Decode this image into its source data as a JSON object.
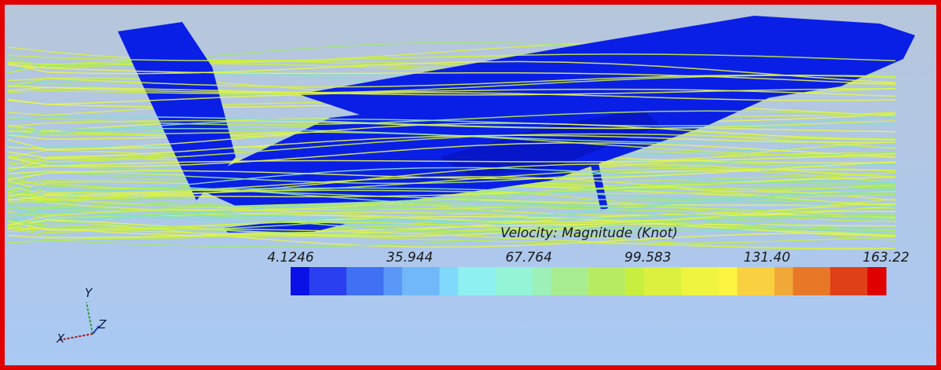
{
  "colorbar": {
    "title": "Velocity: Magnitude (Knot)",
    "ticks": [
      "4.1246",
      "35.944",
      "67.764",
      "99.583",
      "131.40",
      "163.22"
    ]
  },
  "axes": {
    "x": "X",
    "y": "Y",
    "z": "Z"
  }
}
